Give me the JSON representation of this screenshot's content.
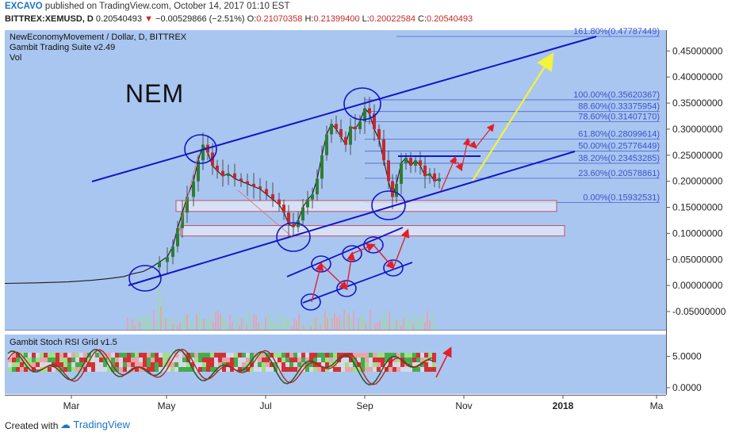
{
  "header": {
    "publisher": "EXCAVO",
    "published_text": "published on TradingView.com, October 14, 2017 01:10 EST",
    "symbol": "BITTREX:XEMUSD, D",
    "last": "0.20540493",
    "change": "−0.00529866 (−2.51%)",
    "open_label": "O:",
    "open": "0.21070358",
    "high_label": "H:",
    "high": "0.21399400",
    "low_label": "L:",
    "low": "0.20022584",
    "close_label": "C:",
    "close": "0.20540493"
  },
  "pane": {
    "title_line1": "NewEconomyMovement / Dollar, D, BITTREX",
    "title_line2": "Gambit Trading Suite v2.49",
    "title_line3": "Vol",
    "annotation": "NEM"
  },
  "subpane": {
    "title": "Gambit Stoch RSI Grid v1.5",
    "ticks": [
      "5.0000",
      "0.0000"
    ]
  },
  "footer": {
    "created": "Created with",
    "brand": "TradingView"
  },
  "colors": {
    "pane_bg": "#a9c6f0",
    "channel": "#1414c8",
    "fib": "#3d52c9",
    "arrow_red": "#e0202a",
    "arrow_yellow": "#f4f438",
    "candle_up": "#2e7d32",
    "candle_down": "#c62828"
  },
  "chart_data": {
    "type": "line",
    "title": "NewEconomyMovement / Dollar, D, BITTREX",
    "y_ticks": [
      "0.45000000",
      "0.40000000",
      "0.35000000",
      "0.30000000",
      "0.25000000",
      "0.20000000",
      "0.15000000",
      "0.10000000",
      "0.05000000",
      "0.00000000",
      "-0.05000000"
    ],
    "ylim": [
      -0.085,
      0.49
    ],
    "x_ticks": [
      "Mar",
      "May",
      "Jul",
      "Sep",
      "Nov",
      "2018",
      "Ma"
    ],
    "x_tick_bold": "2018",
    "fib_levels": [
      {
        "label": "161.80%(0.47787449)",
        "value": 0.47787449
      },
      {
        "label": "100.00%(0.35620367)",
        "value": 0.35620367
      },
      {
        "label": "88.60%(0.33375954)",
        "value": 0.33375954
      },
      {
        "label": "78.60%(0.31407170)",
        "value": 0.3140717
      },
      {
        "label": "61.80%(0.28099614)",
        "value": 0.28099614
      },
      {
        "label": "50.00%(0.25776449)",
        "value": 0.25776449
      },
      {
        "label": "38.20%(0.23453285)",
        "value": 0.23453285
      },
      {
        "label": "23.60%(0.20578861)",
        "value": 0.20578861
      },
      {
        "label": "0.00%(0.15932531)",
        "value": 0.15932531
      }
    ],
    "price_path": [
      [
        0,
        0.004
      ],
      [
        40,
        0.005
      ],
      [
        80,
        0.007
      ],
      [
        110,
        0.01
      ],
      [
        130,
        0.013
      ],
      [
        150,
        0.017
      ],
      [
        160,
        0.022
      ],
      [
        175,
        0.027
      ],
      [
        185,
        0.035
      ],
      [
        195,
        0.045
      ],
      [
        205,
        0.055
      ],
      [
        212,
        0.075
      ],
      [
        218,
        0.11
      ],
      [
        224,
        0.14
      ],
      [
        230,
        0.17
      ],
      [
        238,
        0.2
      ],
      [
        244,
        0.24
      ],
      [
        250,
        0.27
      ],
      [
        256,
        0.255
      ],
      [
        262,
        0.23
      ],
      [
        268,
        0.22
      ],
      [
        275,
        0.21
      ],
      [
        282,
        0.215
      ],
      [
        290,
        0.205
      ],
      [
        298,
        0.2
      ],
      [
        306,
        0.195
      ],
      [
        314,
        0.19
      ],
      [
        322,
        0.185
      ],
      [
        330,
        0.175
      ],
      [
        338,
        0.165
      ],
      [
        346,
        0.155
      ],
      [
        352,
        0.14
      ],
      [
        358,
        0.118
      ],
      [
        364,
        0.112
      ],
      [
        370,
        0.125
      ],
      [
        376,
        0.15
      ],
      [
        382,
        0.165
      ],
      [
        388,
        0.175
      ],
      [
        394,
        0.205
      ],
      [
        400,
        0.25
      ],
      [
        406,
        0.29
      ],
      [
        412,
        0.31
      ],
      [
        418,
        0.3
      ],
      [
        424,
        0.285
      ],
      [
        430,
        0.27
      ],
      [
        436,
        0.305
      ],
      [
        442,
        0.3
      ],
      [
        448,
        0.315
      ],
      [
        454,
        0.34
      ],
      [
        460,
        0.33
      ],
      [
        466,
        0.3
      ],
      [
        472,
        0.28
      ],
      [
        478,
        0.24
      ],
      [
        484,
        0.2
      ],
      [
        489,
        0.17
      ],
      [
        494,
        0.195
      ],
      [
        500,
        0.235
      ],
      [
        506,
        0.245
      ],
      [
        512,
        0.23
      ],
      [
        518,
        0.24
      ],
      [
        524,
        0.23
      ],
      [
        530,
        0.21
      ],
      [
        536,
        0.215
      ],
      [
        542,
        0.2
      ],
      [
        548,
        0.205
      ]
    ]
  }
}
